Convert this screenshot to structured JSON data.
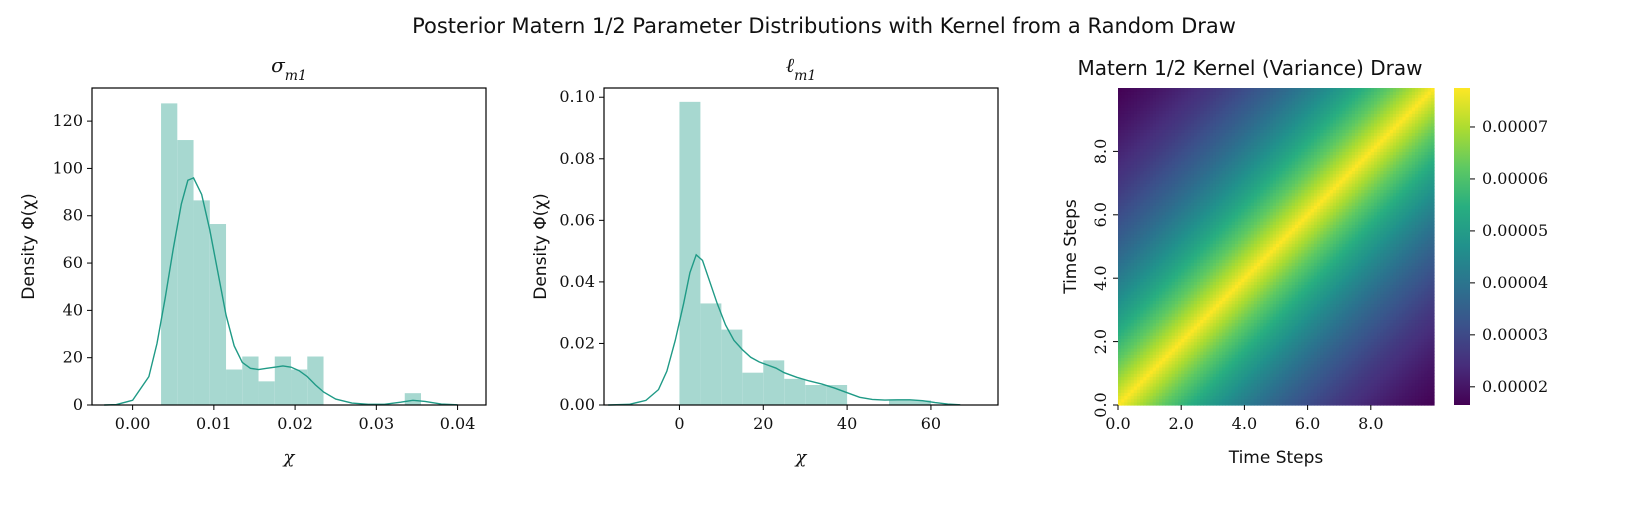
{
  "figure": {
    "title": "Posterior Matern 1/2 Parameter Distributions with Kernel from a Random Draw"
  },
  "colors": {
    "hist_fill": "#a7d8d0",
    "kde_line": "#1f9a86",
    "axis": "#000000"
  },
  "chart_data": [
    {
      "type": "bar",
      "subtype": "histogram-with-kde",
      "title": "σm1",
      "xlabel": "χ",
      "ylabel": "Density Φ(χ)",
      "xlim": [
        -0.005,
        0.0435
      ],
      "ylim": [
        0,
        134
      ],
      "xticks": [
        0.0,
        0.01,
        0.02,
        0.03,
        0.04
      ],
      "xtick_labels": [
        "0.00",
        "0.01",
        "0.02",
        "0.03",
        "0.04"
      ],
      "yticks": [
        0,
        20,
        40,
        60,
        80,
        100,
        120
      ],
      "ytick_labels": [
        "0",
        "20",
        "40",
        "60",
        "80",
        "100",
        "120"
      ],
      "bins": [
        {
          "x0": 0.0035,
          "x1": 0.0055,
          "value": 127.5
        },
        {
          "x0": 0.0055,
          "x1": 0.0075,
          "value": 112
        },
        {
          "x0": 0.0075,
          "x1": 0.0095,
          "value": 86.5
        },
        {
          "x0": 0.0095,
          "x1": 0.0115,
          "value": 76.5
        },
        {
          "x0": 0.0115,
          "x1": 0.0135,
          "value": 15
        },
        {
          "x0": 0.0135,
          "x1": 0.0155,
          "value": 20.5
        },
        {
          "x0": 0.0155,
          "x1": 0.0175,
          "value": 10
        },
        {
          "x0": 0.0175,
          "x1": 0.0195,
          "value": 20.5
        },
        {
          "x0": 0.0195,
          "x1": 0.0215,
          "value": 15
        },
        {
          "x0": 0.0215,
          "x1": 0.0235,
          "value": 20.5
        },
        {
          "x0": 0.0335,
          "x1": 0.0355,
          "value": 5
        }
      ],
      "kde": {
        "x": [
          -0.0035,
          -0.002,
          0.0,
          0.002,
          0.003,
          0.004,
          0.005,
          0.006,
          0.0068,
          0.0075,
          0.0085,
          0.0095,
          0.0105,
          0.0115,
          0.0125,
          0.0135,
          0.0145,
          0.0155,
          0.0165,
          0.0175,
          0.0185,
          0.0195,
          0.0205,
          0.0215,
          0.0225,
          0.0235,
          0.025,
          0.027,
          0.029,
          0.031,
          0.033,
          0.0345,
          0.036,
          0.038,
          0.04
        ],
        "y": [
          0,
          0.2,
          2,
          12,
          26,
          45,
          66,
          85,
          95,
          96,
          89,
          74,
          56,
          38,
          25,
          18,
          15.5,
          15,
          15.5,
          16,
          16.5,
          16,
          14.5,
          12,
          8.5,
          5.5,
          2.5,
          0.8,
          0.3,
          0.3,
          1.2,
          2.0,
          1.5,
          0.4,
          0.05
        ]
      }
    },
    {
      "type": "bar",
      "subtype": "histogram-with-kde",
      "title": "ℓm1",
      "xlabel": "χ",
      "ylabel": "Density Φ(χ)",
      "xlim": [
        -18,
        76
      ],
      "ylim": [
        0,
        0.103
      ],
      "xticks": [
        0,
        20,
        40,
        60
      ],
      "xtick_labels": [
        "0",
        "20",
        "40",
        "60"
      ],
      "yticks": [
        0.0,
        0.02,
        0.04,
        0.06,
        0.08,
        0.1
      ],
      "ytick_labels": [
        "0.00",
        "0.02",
        "0.04",
        "0.06",
        "0.08",
        "0.10"
      ],
      "bins": [
        {
          "x0": 0,
          "x1": 5,
          "value": 0.0985
        },
        {
          "x0": 5,
          "x1": 10,
          "value": 0.033
        },
        {
          "x0": 10,
          "x1": 15,
          "value": 0.0245
        },
        {
          "x0": 15,
          "x1": 20,
          "value": 0.0105
        },
        {
          "x0": 20,
          "x1": 25,
          "value": 0.0145
        },
        {
          "x0": 25,
          "x1": 30,
          "value": 0.0085
        },
        {
          "x0": 30,
          "x1": 35,
          "value": 0.0065
        },
        {
          "x0": 35,
          "x1": 40,
          "value": 0.0065
        },
        {
          "x0": 50,
          "x1": 55,
          "value": 0.0015
        },
        {
          "x0": 55,
          "x1": 60,
          "value": 0.0015
        }
      ],
      "kde": {
        "x": [
          -17,
          -12,
          -8,
          -5,
          -3,
          -1,
          1,
          2.5,
          4,
          5.5,
          7,
          9,
          11,
          13,
          15,
          17,
          19,
          21,
          23,
          25,
          28,
          31,
          34,
          37,
          40,
          43,
          46,
          49,
          52,
          55,
          58,
          61,
          64,
          67
        ],
        "y": [
          0,
          0.0002,
          0.0015,
          0.005,
          0.011,
          0.021,
          0.033,
          0.043,
          0.0488,
          0.047,
          0.041,
          0.033,
          0.026,
          0.021,
          0.018,
          0.0155,
          0.014,
          0.013,
          0.012,
          0.0105,
          0.009,
          0.0078,
          0.0068,
          0.0055,
          0.004,
          0.0025,
          0.0018,
          0.0016,
          0.0017,
          0.0017,
          0.0014,
          0.0008,
          0.0003,
          5e-05
        ]
      }
    },
    {
      "type": "heatmap",
      "title": "Matern 1/2 Kernel (Variance) Draw",
      "xlabel": "Time Steps",
      "ylabel": "Time Steps",
      "xlim": [
        0,
        10
      ],
      "ylim": [
        0,
        10
      ],
      "xticks": [
        0,
        2,
        4,
        6,
        8
      ],
      "xtick_labels": [
        "0.0",
        "2.0",
        "4.0",
        "6.0",
        "8.0"
      ],
      "yticks": [
        0,
        2,
        4,
        6,
        8
      ],
      "ytick_labels": [
        "0.0",
        "2.0",
        "4.0",
        "6.0",
        "8.0"
      ],
      "colormap": "viridis",
      "value_range": [
        1.65e-05,
        7.75e-05
      ],
      "peak_value": 7.75e-05,
      "corner_value": 1.65e-05,
      "colorbar_ticks": [
        2e-05,
        3e-05,
        4e-05,
        5e-05,
        6e-05,
        7e-05
      ],
      "colorbar_tick_labels": [
        "0.00002",
        "0.00003",
        "0.00004",
        "0.00005",
        "0.00006",
        "0.00007"
      ]
    }
  ]
}
